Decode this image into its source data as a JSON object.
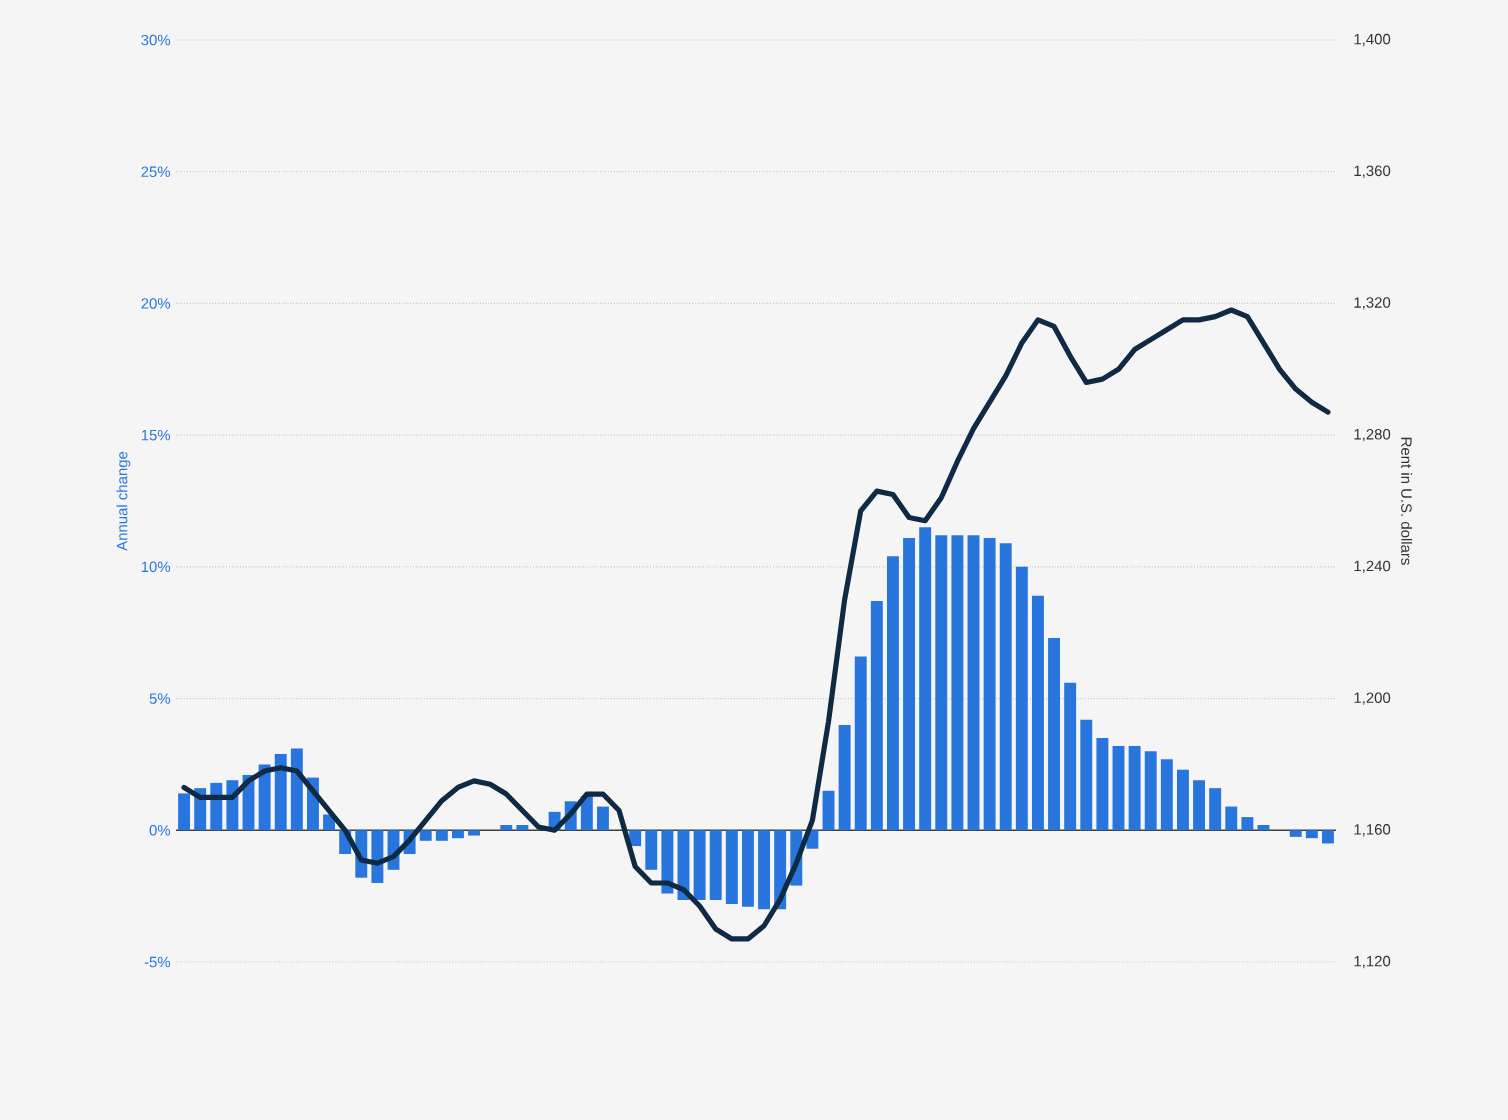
{
  "chart_data": {
    "type": "bar",
    "ylabel": "Annual change",
    "y2label": "Rent in U.S. dollars",
    "categories": [
      null,
      null,
      null,
      null,
      null,
      null,
      null,
      null,
      null,
      null,
      null,
      null,
      null,
      null,
      null,
      null,
      null,
      null,
      null,
      null,
      null,
      null,
      null,
      null,
      null,
      null,
      null,
      null,
      null,
      null,
      null,
      null,
      null,
      null,
      null,
      null,
      null,
      null,
      null,
      null,
      null,
      null,
      null,
      null,
      null,
      null,
      null,
      null,
      null,
      null,
      null,
      null,
      null,
      null,
      null,
      null,
      null,
      null,
      null,
      null,
      null,
      null,
      null,
      null,
      null,
      null,
      null,
      null,
      null,
      null,
      null,
      null
    ],
    "series": [
      {
        "color": "#2876dd",
        "values": [
          1.4,
          1.6,
          1.8,
          1.9,
          2.1,
          2.5,
          2.9,
          3.1,
          2.0,
          0.6,
          -0.9,
          -1.8,
          -2.0,
          -1.5,
          -0.9,
          -0.4,
          -0.4,
          -0.3,
          -0.2,
          null,
          0.2,
          0.2,
          null,
          0.7,
          1.1,
          1.3,
          0.9,
          null,
          -0.6,
          -1.5,
          -2.4,
          -2.65,
          -2.65,
          -2.65,
          -2.8,
          -2.9,
          -3.0,
          -3.0,
          -2.1,
          -0.7,
          1.5,
          4.0,
          6.6,
          8.7,
          10.4,
          11.1,
          11.5,
          11.2,
          11.2,
          11.2,
          11.1,
          10.9,
          10.0,
          8.9,
          7.3,
          5.6,
          4.2,
          3.5,
          3.2,
          3.2,
          3.0,
          2.7,
          2.3,
          1.9,
          1.6,
          0.9,
          0.5,
          0.2,
          null,
          -0.25,
          -0.3,
          -0.5
        ]
      },
      {
        "type": "line",
        "axis": "y2",
        "color": "#0f2a44",
        "values": [
          1173,
          1170,
          1170,
          1170,
          1175,
          1178,
          1179,
          1178,
          1172,
          1166,
          1160,
          1151,
          1150,
          1152,
          1157,
          1163,
          1169,
          1173,
          1175,
          1174,
          1171,
          1166,
          1161,
          1160,
          1165,
          1171,
          1171,
          1166,
          1149,
          1144,
          1144,
          1142,
          1137,
          1130,
          1127,
          1127,
          1131,
          1139,
          1150,
          1163,
          1193,
          1230,
          1257,
          1263,
          1262,
          1255,
          1254,
          1261,
          1272,
          1282,
          1290,
          1298,
          1308,
          1315,
          1313,
          1304,
          1296,
          1297,
          1300,
          1306,
          1309,
          1312,
          1315,
          1315,
          1316,
          1318,
          1316,
          1308,
          1300,
          1294,
          1290,
          1287
        ]
      }
    ],
    "ylim": [
      -5,
      30
    ],
    "yticks": [
      {
        "value": -5,
        "label": "-5%"
      },
      {
        "value": 0,
        "label": "0%"
      },
      {
        "value": 5,
        "label": "5%"
      },
      {
        "value": 10,
        "label": "10%"
      },
      {
        "value": 15,
        "label": "15%"
      },
      {
        "value": 20,
        "label": "20%"
      },
      {
        "value": 25,
        "label": "25%"
      },
      {
        "value": 30,
        "label": "30%"
      }
    ],
    "y2lim": [
      1120,
      1400
    ],
    "y2ticks": [
      {
        "value": 1120,
        "label": "1,120"
      },
      {
        "value": 1160,
        "label": "1,160"
      },
      {
        "value": 1200,
        "label": "1,200"
      },
      {
        "value": 1240,
        "label": "1,240"
      },
      {
        "value": 1280,
        "label": "1,280"
      },
      {
        "value": 1320,
        "label": "1,320"
      },
      {
        "value": 1360,
        "label": "1,360"
      },
      {
        "value": 1400,
        "label": "1,400"
      }
    ],
    "grid": "y",
    "tick_labels": "y",
    "line_style": "solid",
    "marker": "none"
  }
}
